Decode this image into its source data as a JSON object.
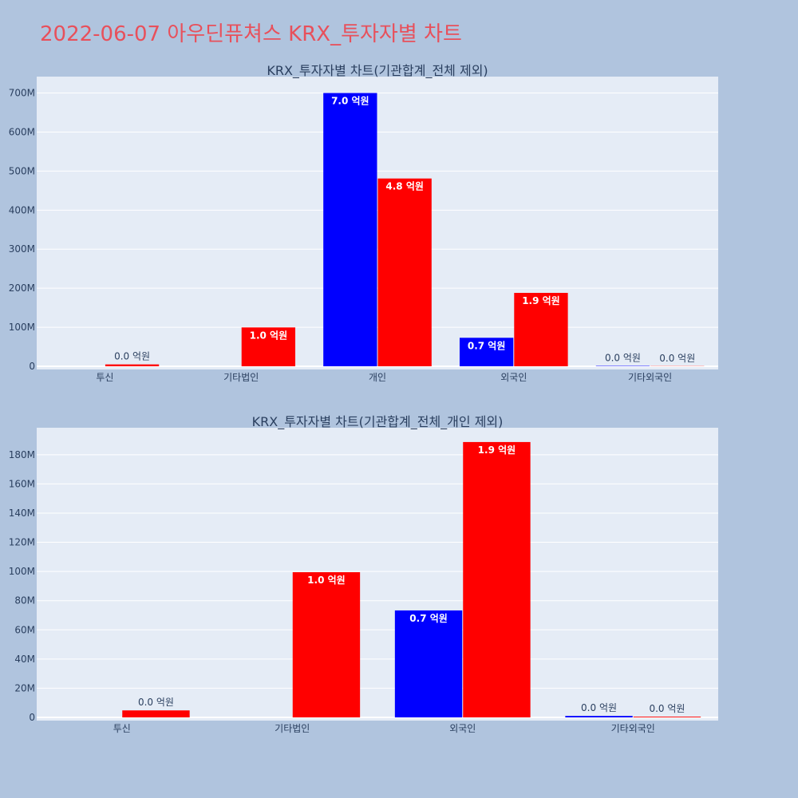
{
  "page": {
    "title": "2022-06-07 아우딘퓨쳐스 KRX_투자자별 차트"
  },
  "colors": {
    "background": "#b0c4de",
    "plot_bg": "#e5ecf6",
    "title": "#e8505b",
    "series_blue": "#0000ff",
    "series_red": "#ff0000",
    "text": "#2a3f5f"
  },
  "chart_data": [
    {
      "type": "bar",
      "title": "KRX_투자자별 차트(기관합계_전체 제외)",
      "categories": [
        "투신",
        "기타법인",
        "개인",
        "외국인",
        "기타외국인"
      ],
      "series": [
        {
          "color": "#0000ff",
          "values": [
            0,
            0,
            700000000,
            73000000,
            1000000
          ],
          "labels": [
            "",
            "",
            "7.0 억원",
            "0.7 억원",
            "0.0 억원"
          ]
        },
        {
          "color": "#ff0000",
          "values": [
            4800000,
            99500000,
            481000000,
            188000000,
            500000
          ],
          "labels": [
            "0.0 억원",
            "1.0 억원",
            "4.8 억원",
            "1.9 억원",
            "0.0 억원"
          ]
        }
      ],
      "yticks": [
        0,
        100000000,
        200000000,
        300000000,
        400000000,
        500000000,
        600000000,
        700000000
      ],
      "ytick_labels": [
        "0",
        "100M",
        "200M",
        "300M",
        "400M",
        "500M",
        "600M",
        "700M"
      ],
      "ylim": [
        0,
        742000000
      ],
      "grid": true,
      "legend": "none"
    },
    {
      "type": "bar",
      "title": "KRX_투자자별 차트(기관합계_전체_개인 제외)",
      "categories": [
        "투신",
        "기타법인",
        "외국인",
        "기타외국인"
      ],
      "series": [
        {
          "color": "#0000ff",
          "values": [
            0,
            0,
            73300000,
            1000000
          ],
          "labels": [
            "",
            "",
            "0.7 억원",
            "0.0 억원"
          ]
        },
        {
          "color": "#ff0000",
          "values": [
            4800000,
            99500000,
            188700000,
            500000
          ],
          "labels": [
            "0.0 억원",
            "1.0 억원",
            "1.9 억원",
            "0.0 억원"
          ]
        }
      ],
      "yticks": [
        0,
        20000000,
        40000000,
        60000000,
        80000000,
        100000000,
        120000000,
        140000000,
        160000000,
        180000000
      ],
      "ytick_labels": [
        "0",
        "20M",
        "40M",
        "60M",
        "80M",
        "100M",
        "120M",
        "140M",
        "160M",
        "180M"
      ],
      "ylim": [
        0,
        198500000
      ],
      "grid": true,
      "legend": "none"
    }
  ]
}
